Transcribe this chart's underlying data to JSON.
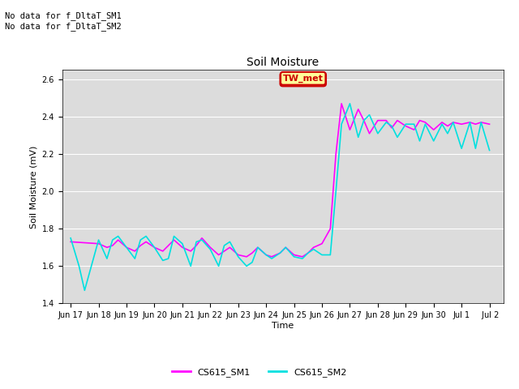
{
  "title": "Soil Moisture",
  "xlabel": "Time",
  "ylabel": "Soil Moisture (mV)",
  "ylim": [
    1.4,
    2.65
  ],
  "yticks": [
    1.4,
    1.6,
    1.8,
    2.0,
    2.2,
    2.4,
    2.6
  ],
  "bg_color": "#dcdcdc",
  "color_sm1": "#ff00ff",
  "color_sm2": "#00e0e0",
  "annotation_text": "No data for f_DltaT_SM1\nNo data for f_DltaT_SM2",
  "legend_label1": "CS615_SM1",
  "legend_label2": "CS615_SM2",
  "tw_met_label": "TW_met",
  "tw_met_bg": "#ffff99",
  "tw_met_border": "#cc0000",
  "xtick_labels": [
    "Jun 17",
    "Jun 18",
    "Jun 19",
    "Jun 20",
    "Jun 21",
    "Jun 22",
    "Jun 23",
    "Jun 24",
    "Jun 25",
    "Jun 26",
    "Jun 27",
    "Jun 28",
    "Jun 29",
    "Jun 30",
    "Jul 1",
    " Jul 2"
  ],
  "sm1_x": [
    0,
    1,
    1.3,
    1.5,
    1.7,
    2,
    2.3,
    2.5,
    2.7,
    3,
    3.3,
    3.5,
    3.7,
    4,
    4.3,
    4.5,
    4.7,
    5,
    5.3,
    5.5,
    5.7,
    6,
    6.3,
    6.5,
    6.7,
    7,
    7.2,
    7.5,
    7.7,
    8,
    8.3,
    8.5,
    8.7,
    9,
    9.3,
    9.5,
    9.7,
    10,
    10.3,
    10.5,
    10.7,
    11,
    11.3,
    11.5,
    11.7,
    12,
    12.3,
    12.5,
    12.7,
    13,
    13.3,
    13.5,
    13.7,
    14,
    14.3,
    14.5,
    14.7,
    15
  ],
  "sm1_y": [
    1.73,
    1.72,
    1.7,
    1.71,
    1.74,
    1.7,
    1.68,
    1.71,
    1.73,
    1.7,
    1.68,
    1.71,
    1.74,
    1.7,
    1.68,
    1.71,
    1.75,
    1.7,
    1.66,
    1.68,
    1.7,
    1.66,
    1.65,
    1.67,
    1.7,
    1.66,
    1.65,
    1.67,
    1.7,
    1.66,
    1.65,
    1.67,
    1.7,
    1.72,
    1.8,
    2.2,
    2.47,
    2.33,
    2.44,
    2.38,
    2.31,
    2.38,
    2.38,
    2.34,
    2.38,
    2.35,
    2.33,
    2.38,
    2.37,
    2.33,
    2.37,
    2.35,
    2.37,
    2.36,
    2.37,
    2.36,
    2.37,
    2.36
  ],
  "sm2_x": [
    0,
    0.3,
    0.5,
    1,
    1.3,
    1.5,
    1.7,
    2,
    2.3,
    2.5,
    2.7,
    3,
    3.3,
    3.5,
    3.7,
    4,
    4.3,
    4.5,
    4.7,
    5,
    5.3,
    5.5,
    5.7,
    6,
    6.3,
    6.5,
    6.7,
    7,
    7.2,
    7.5,
    7.7,
    8,
    8.3,
    8.5,
    8.7,
    9,
    9.3,
    9.5,
    9.7,
    10,
    10.3,
    10.5,
    10.7,
    11,
    11.3,
    11.5,
    11.7,
    12,
    12.3,
    12.5,
    12.7,
    13,
    13.3,
    13.5,
    13.7,
    14,
    14.3,
    14.5,
    14.7,
    15
  ],
  "sm2_y": [
    1.75,
    1.6,
    1.47,
    1.74,
    1.64,
    1.74,
    1.76,
    1.7,
    1.64,
    1.74,
    1.76,
    1.7,
    1.63,
    1.64,
    1.76,
    1.72,
    1.6,
    1.73,
    1.74,
    1.69,
    1.6,
    1.71,
    1.73,
    1.65,
    1.6,
    1.62,
    1.7,
    1.66,
    1.64,
    1.67,
    1.7,
    1.65,
    1.64,
    1.67,
    1.69,
    1.66,
    1.66,
    2.0,
    2.36,
    2.47,
    2.29,
    2.38,
    2.41,
    2.31,
    2.37,
    2.35,
    2.29,
    2.36,
    2.36,
    2.27,
    2.36,
    2.27,
    2.36,
    2.31,
    2.37,
    2.23,
    2.37,
    2.23,
    2.37,
    2.22
  ]
}
